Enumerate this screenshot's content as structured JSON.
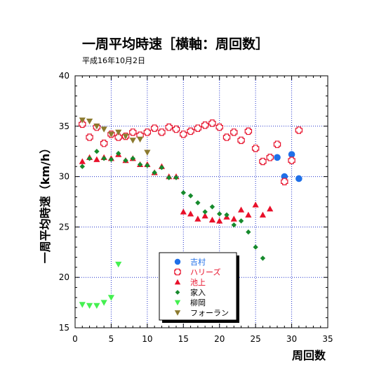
{
  "chart_data": {
    "type": "scatter",
    "title": "一周平均時速［横軸：周回数］",
    "subtitle": "平成16年10月2日",
    "xlabel": "周回数",
    "ylabel": "一周平均時速（km/h）",
    "xlim": [
      0,
      35
    ],
    "ylim": [
      15,
      40
    ],
    "xticks": [
      0,
      5,
      10,
      15,
      20,
      25,
      30,
      35
    ],
    "yticks": [
      15,
      20,
      25,
      30,
      35,
      40
    ],
    "grid": true,
    "legend_position": "bottom-center",
    "series": [
      {
        "name": "吉村",
        "marker": "circle",
        "color": "#1f6fe8",
        "text_color": "#1f6fe8",
        "points": [
          [
            1,
            35.2
          ],
          [
            2,
            33.9
          ],
          [
            3,
            34.9
          ],
          [
            4,
            33.3
          ],
          [
            5,
            34.2
          ],
          [
            6,
            33.9
          ],
          [
            7,
            34.0
          ],
          [
            8,
            34.4
          ],
          [
            9,
            34.1
          ],
          [
            10,
            34.4
          ],
          [
            11,
            34.8
          ],
          [
            12,
            34.4
          ],
          [
            13,
            34.9
          ],
          [
            14,
            34.7
          ],
          [
            15,
            34.2
          ],
          [
            16,
            34.5
          ],
          [
            17,
            34.8
          ],
          [
            18,
            35.1
          ],
          [
            19,
            35.3
          ],
          [
            20,
            34.9
          ],
          [
            21,
            33.9
          ],
          [
            22,
            34.4
          ],
          [
            23,
            33.6
          ],
          [
            24,
            34.5
          ],
          [
            25,
            32.8
          ],
          [
            26,
            31.5
          ],
          [
            27,
            31.9
          ],
          [
            28,
            31.9
          ],
          [
            29,
            30.0
          ],
          [
            30,
            32.2
          ],
          [
            31,
            29.8
          ]
        ]
      },
      {
        "name": "ハリーズ",
        "marker": "cross",
        "color": "#e8102a",
        "text_color": "#e8102a",
        "points": [
          [
            1,
            35.2
          ],
          [
            2,
            33.9
          ],
          [
            3,
            34.9
          ],
          [
            4,
            33.3
          ],
          [
            5,
            34.2
          ],
          [
            6,
            33.9
          ],
          [
            7,
            34.0
          ],
          [
            8,
            34.4
          ],
          [
            9,
            34.1
          ],
          [
            10,
            34.4
          ],
          [
            11,
            34.8
          ],
          [
            12,
            34.4
          ],
          [
            13,
            34.9
          ],
          [
            14,
            34.7
          ],
          [
            15,
            34.2
          ],
          [
            16,
            34.5
          ],
          [
            17,
            34.8
          ],
          [
            18,
            35.1
          ],
          [
            19,
            35.3
          ],
          [
            20,
            34.9
          ],
          [
            21,
            33.9
          ],
          [
            22,
            34.4
          ],
          [
            23,
            33.6
          ],
          [
            24,
            34.5
          ],
          [
            25,
            32.8
          ],
          [
            26,
            31.5
          ],
          [
            27,
            31.9
          ],
          [
            28,
            33.2
          ],
          [
            29,
            29.5
          ],
          [
            30,
            31.6
          ],
          [
            31,
            34.6
          ]
        ]
      },
      {
        "name": "池上",
        "marker": "triangle-up",
        "color": "#e8102a",
        "text_color": "#e8102a",
        "points": [
          [
            1,
            31.5
          ],
          [
            2,
            31.9
          ],
          [
            3,
            31.7
          ],
          [
            4,
            31.9
          ],
          [
            5,
            31.8
          ],
          [
            6,
            32.2
          ],
          [
            7,
            31.6
          ],
          [
            8,
            31.8
          ],
          [
            9,
            31.2
          ],
          [
            10,
            31.2
          ],
          [
            11,
            30.4
          ],
          [
            12,
            31.0
          ],
          [
            13,
            30.0
          ],
          [
            14,
            30.0
          ],
          [
            15,
            26.5
          ],
          [
            16,
            26.3
          ],
          [
            17,
            25.8
          ],
          [
            18,
            26.1
          ],
          [
            19,
            25.7
          ],
          [
            20,
            25.6
          ],
          [
            21,
            26.0
          ],
          [
            22,
            25.8
          ],
          [
            23,
            26.7
          ],
          [
            24,
            26.2
          ],
          [
            25,
            27.2
          ],
          [
            26,
            26.2
          ],
          [
            27,
            26.8
          ]
        ]
      },
      {
        "name": "家入",
        "marker": "diamond",
        "color": "#168a2c",
        "text_color": "#000000",
        "points": [
          [
            1,
            31.0
          ],
          [
            2,
            31.8
          ],
          [
            3,
            32.5
          ],
          [
            4,
            31.8
          ],
          [
            5,
            31.7
          ],
          [
            6,
            32.3
          ],
          [
            7,
            31.6
          ],
          [
            8,
            31.8
          ],
          [
            9,
            31.2
          ],
          [
            10,
            31.1
          ],
          [
            11,
            30.4
          ],
          [
            12,
            30.9
          ],
          [
            13,
            29.9
          ],
          [
            14,
            29.9
          ],
          [
            15,
            28.4
          ],
          [
            16,
            28.1
          ],
          [
            17,
            27.4
          ],
          [
            18,
            26.5
          ],
          [
            19,
            27.0
          ],
          [
            20,
            26.3
          ],
          [
            21,
            26.2
          ],
          [
            22,
            25.2
          ],
          [
            23,
            25.6
          ],
          [
            24,
            24.5
          ],
          [
            25,
            23.0
          ],
          [
            26,
            21.9
          ]
        ]
      },
      {
        "name": "柳岡",
        "marker": "triangle-down",
        "color": "#44f050",
        "text_color": "#000000",
        "points": [
          [
            1,
            17.3
          ],
          [
            2,
            17.2
          ],
          [
            3,
            17.2
          ],
          [
            4,
            17.5
          ],
          [
            5,
            18.0
          ],
          [
            6,
            21.3
          ]
        ]
      },
      {
        "name": "フォーラン",
        "marker": "triangle-down",
        "color": "#8c7a2e",
        "text_color": "#000000",
        "points": [
          [
            1,
            35.6
          ],
          [
            2,
            35.5
          ],
          [
            3,
            35.0
          ],
          [
            4,
            34.7
          ],
          [
            5,
            34.2
          ],
          [
            6,
            34.4
          ],
          [
            7,
            34.0
          ],
          [
            8,
            33.6
          ],
          [
            9,
            33.7
          ],
          [
            10,
            32.4
          ]
        ]
      }
    ]
  }
}
